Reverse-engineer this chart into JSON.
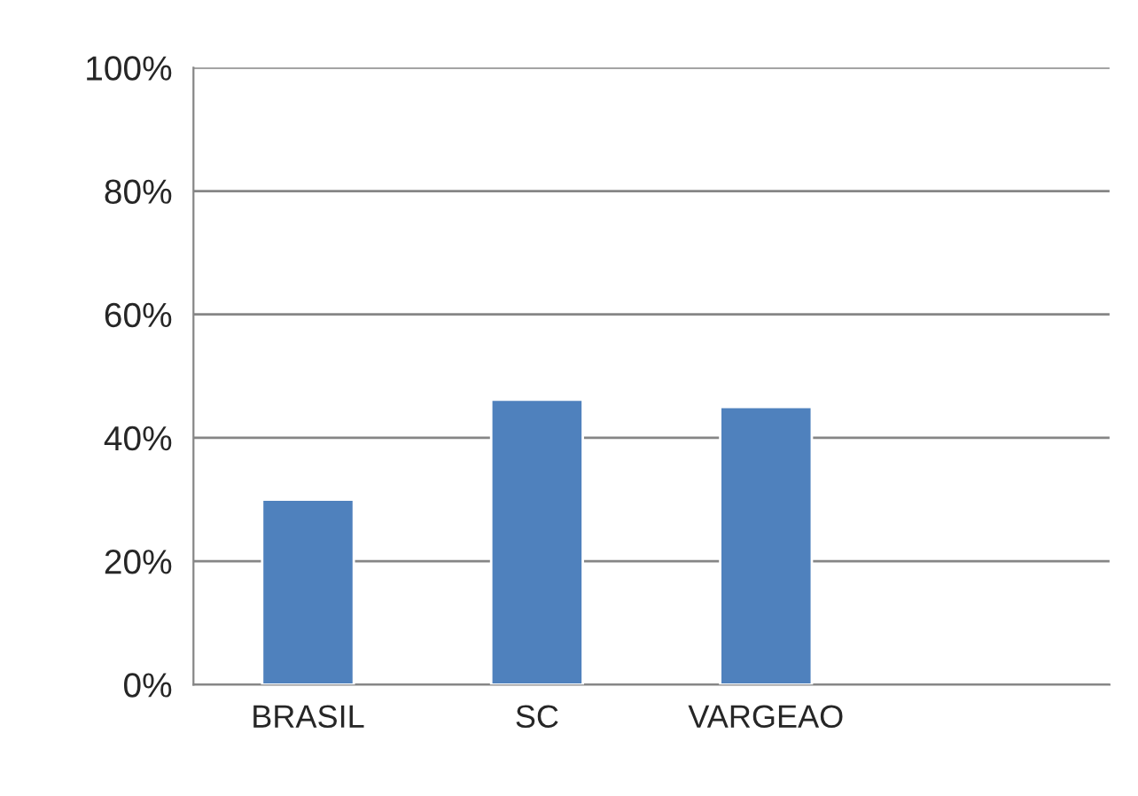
{
  "chart_data": {
    "type": "bar",
    "categories": [
      "BRASIL",
      "SC",
      "VARGEAO",
      null
    ],
    "values": [
      30,
      46.2,
      45,
      null
    ],
    "color": "#4f81bd",
    "ylim": [
      0,
      100
    ],
    "yticks": [
      {
        "value": 0,
        "label": "0%"
      },
      {
        "value": 20,
        "label": "20%"
      },
      {
        "value": 40,
        "label": "40%"
      },
      {
        "value": 60,
        "label": "60%"
      },
      {
        "value": 80,
        "label": "80%"
      },
      {
        "value": 100,
        "label": "100%"
      }
    ],
    "grid": "y",
    "legend": false
  }
}
